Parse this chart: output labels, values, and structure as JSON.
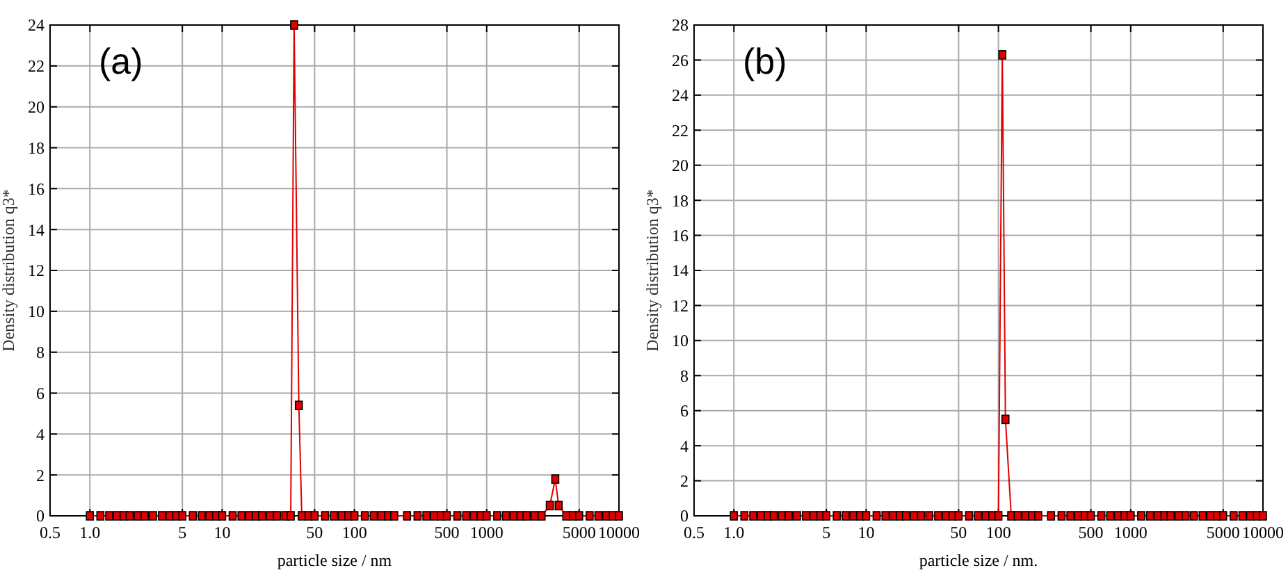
{
  "chart_data": [
    {
      "type": "line",
      "xlabel": "particle size / nm",
      "ylabel": "Density distribution q3*",
      "annotations": [
        "(a)"
      ],
      "log": "x",
      "grid": true,
      "marker": "square",
      "line_style": "solid",
      "xlim": [
        0.5,
        10000
      ],
      "xticks": [
        0.5,
        {
          "value": 1,
          "label": "1.0"
        },
        5,
        10,
        50,
        100,
        500,
        1000,
        5000,
        10000
      ],
      "ylim": [
        0,
        24
      ],
      "yticks": [
        0,
        2,
        4,
        6,
        8,
        10,
        12,
        14,
        16,
        18,
        20,
        22,
        24
      ],
      "series": [
        {
          "color": "#e00000",
          "x": [
            1,
            1.2,
            1.4,
            1.6,
            1.8,
            2,
            2.3,
            2.6,
            3,
            3.5,
            4,
            4.5,
            5,
            6,
            7,
            8,
            9,
            10,
            12,
            14,
            16,
            18,
            20,
            23,
            26,
            30,
            33,
            35,
            38,
            40,
            45,
            50,
            60,
            70,
            80,
            90,
            100,
            120,
            140,
            160,
            180,
            200,
            250,
            300,
            350,
            400,
            450,
            500,
            600,
            700,
            800,
            900,
            1000,
            1200,
            1400,
            1600,
            1800,
            2000,
            2300,
            2600,
            3000,
            3300,
            3500,
            4000,
            4500,
            5000,
            6000,
            7000,
            8000,
            9000,
            10000
          ],
          "values": [
            0,
            0,
            0,
            0,
            0,
            0,
            0,
            0,
            0,
            0,
            0,
            0,
            0,
            0,
            0,
            0,
            0,
            0,
            0,
            0,
            0,
            0,
            0,
            0,
            0,
            0,
            0,
            24,
            5.4,
            0,
            0,
            0,
            0,
            0,
            0,
            0,
            0,
            0,
            0,
            0,
            0,
            0,
            0,
            0,
            0,
            0,
            0,
            0,
            0,
            0,
            0,
            0,
            0,
            0,
            0,
            0,
            0,
            0,
            0,
            0,
            0.5,
            1.8,
            0.5,
            0,
            0,
            0,
            0,
            0,
            0,
            0,
            0
          ]
        }
      ]
    },
    {
      "type": "line",
      "xlabel": "particle size / nm.",
      "ylabel": "Density distribution q3*",
      "annotations": [
        "(b)"
      ],
      "log": "x",
      "grid": true,
      "marker": "square",
      "line_style": "solid",
      "xlim": [
        0.5,
        10000
      ],
      "xticks": [
        0.5,
        {
          "value": 1,
          "label": "1.0"
        },
        5,
        10,
        50,
        100,
        500,
        1000,
        5000,
        10000
      ],
      "ylim": [
        0,
        28
      ],
      "yticks": [
        0,
        2,
        4,
        6,
        8,
        10,
        12,
        14,
        16,
        18,
        20,
        22,
        24,
        26,
        28
      ],
      "series": [
        {
          "color": "#e00000",
          "x": [
            1,
            1.2,
            1.4,
            1.6,
            1.8,
            2,
            2.3,
            2.6,
            3,
            3.5,
            4,
            4.5,
            5,
            6,
            7,
            8,
            9,
            10,
            12,
            14,
            16,
            18,
            20,
            23,
            26,
            30,
            35,
            40,
            45,
            50,
            60,
            70,
            80,
            90,
            100,
            107,
            113,
            125,
            140,
            160,
            180,
            200,
            250,
            300,
            350,
            400,
            450,
            500,
            600,
            700,
            800,
            900,
            1000,
            1200,
            1400,
            1600,
            1800,
            2000,
            2300,
            2600,
            3000,
            3500,
            4000,
            4500,
            5000,
            6000,
            7000,
            8000,
            9000,
            10000
          ],
          "values": [
            0,
            0,
            0,
            0,
            0,
            0,
            0,
            0,
            0,
            0,
            0,
            0,
            0,
            0,
            0,
            0,
            0,
            0,
            0,
            0,
            0,
            0,
            0,
            0,
            0,
            0,
            0,
            0,
            0,
            0,
            0,
            0,
            0,
            0,
            0,
            26.3,
            5.5,
            0,
            0,
            0,
            0,
            0,
            0,
            0,
            0,
            0,
            0,
            0,
            0,
            0,
            0,
            0,
            0,
            0,
            0,
            0,
            0,
            0,
            0,
            0,
            0,
            0,
            0,
            0,
            0,
            0,
            0,
            0,
            0,
            0
          ]
        }
      ]
    }
  ]
}
